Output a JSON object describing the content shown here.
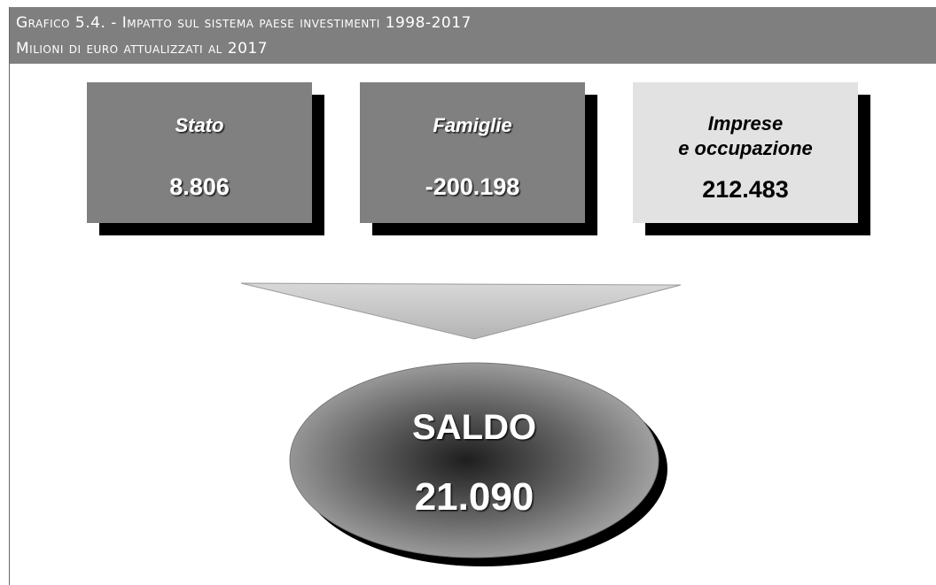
{
  "header": {
    "title": "Grafico 5.4. - Impatto sul sistema paese investimenti 1998-2017",
    "subtitle": "Milioni di euro attualizzati al 2017"
  },
  "boxes": [
    {
      "label": [
        "Stato"
      ],
      "value": "8.806"
    },
    {
      "label": [
        "Famiglie"
      ],
      "value": "-200.198"
    },
    {
      "label": [
        "Imprese",
        "e occupazione"
      ],
      "value": "212.483"
    }
  ],
  "result": {
    "label": "SALDO",
    "value": "21.090"
  }
}
